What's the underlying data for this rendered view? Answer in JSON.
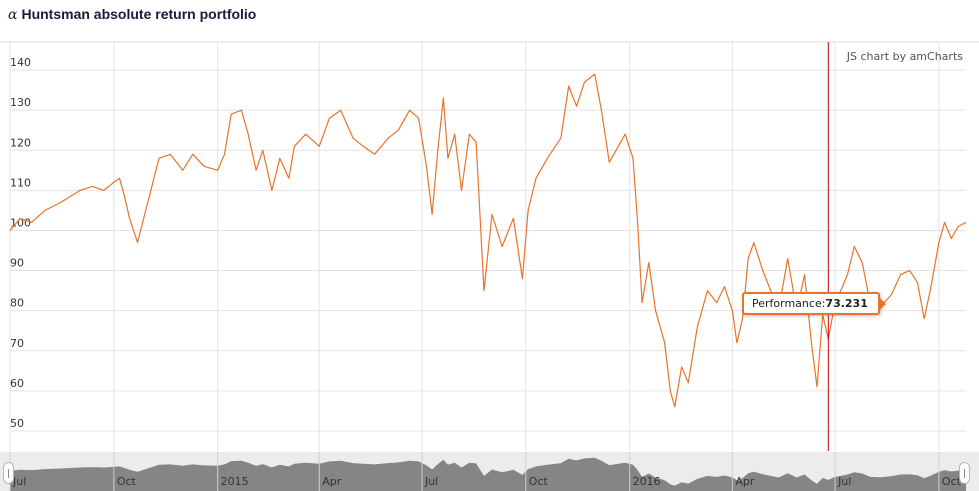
{
  "title": "Huntsman absolute return portfolio",
  "title_icon": "alpha-symbol",
  "title_symbol": "α",
  "credit": "JS chart by amCharts",
  "tooltip": {
    "label": "Performance:",
    "value": "73.231"
  },
  "colors": {
    "line": "#e8732a",
    "cursor": "#cc0000",
    "grid": "#e3e3e3",
    "scrollbar_fill": "#858585",
    "scrollbar_bg": "#ececec"
  },
  "chart_data": {
    "type": "line",
    "title": "Huntsman absolute return portfolio",
    "xlabel": "",
    "ylabel": "",
    "ylim": [
      45,
      147
    ],
    "yticks": [
      50,
      60,
      70,
      80,
      90,
      100,
      110,
      120,
      130,
      140
    ],
    "xlim": [
      "2014-07-01",
      "2016-10-25"
    ],
    "xtick_labels": [
      {
        "label": "Jul",
        "date": "2014-07-01"
      },
      {
        "label": "Oct",
        "date": "2014-10-01"
      },
      {
        "label": "2015",
        "date": "2015-01-01"
      },
      {
        "label": "Apr",
        "date": "2015-04-01"
      },
      {
        "label": "Jul",
        "date": "2015-07-01"
      },
      {
        "label": "Oct",
        "date": "2015-10-01"
      },
      {
        "label": "2016",
        "date": "2016-01-01"
      },
      {
        "label": "Apr",
        "date": "2016-04-01"
      },
      {
        "label": "Jul",
        "date": "2016-07-01"
      },
      {
        "label": "Oct",
        "date": "2016-10-01"
      }
    ],
    "grid": true,
    "cursor_date": "2016-06-25",
    "series": [
      {
        "name": "Performance",
        "points": [
          [
            "2014-07-01",
            100
          ],
          [
            "2014-07-10",
            103
          ],
          [
            "2014-07-20",
            102
          ],
          [
            "2014-08-01",
            105
          ],
          [
            "2014-08-15",
            107
          ],
          [
            "2014-09-01",
            110
          ],
          [
            "2014-09-12",
            111
          ],
          [
            "2014-09-22",
            110
          ],
          [
            "2014-10-01",
            112
          ],
          [
            "2014-10-06",
            113
          ],
          [
            "2014-10-10",
            109
          ],
          [
            "2014-10-15",
            103
          ],
          [
            "2014-10-22",
            97
          ],
          [
            "2014-11-01",
            108
          ],
          [
            "2014-11-10",
            118
          ],
          [
            "2014-11-20",
            119
          ],
          [
            "2014-12-01",
            115
          ],
          [
            "2014-12-10",
            119
          ],
          [
            "2014-12-20",
            116
          ],
          [
            "2015-01-01",
            115
          ],
          [
            "2015-01-07",
            119
          ],
          [
            "2015-01-13",
            129
          ],
          [
            "2015-01-22",
            130
          ],
          [
            "2015-01-28",
            124
          ],
          [
            "2015-02-04",
            115
          ],
          [
            "2015-02-10",
            120
          ],
          [
            "2015-02-18",
            110
          ],
          [
            "2015-02-25",
            118
          ],
          [
            "2015-03-05",
            113
          ],
          [
            "2015-03-10",
            121
          ],
          [
            "2015-03-20",
            124
          ],
          [
            "2015-04-01",
            121
          ],
          [
            "2015-04-10",
            128
          ],
          [
            "2015-04-20",
            130
          ],
          [
            "2015-05-01",
            123
          ],
          [
            "2015-05-10",
            121
          ],
          [
            "2015-05-20",
            119
          ],
          [
            "2015-06-01",
            123
          ],
          [
            "2015-06-10",
            125
          ],
          [
            "2015-06-20",
            130
          ],
          [
            "2015-06-28",
            128
          ],
          [
            "2015-07-05",
            116
          ],
          [
            "2015-07-10",
            104
          ],
          [
            "2015-07-15",
            120
          ],
          [
            "2015-07-20",
            133
          ],
          [
            "2015-07-24",
            118
          ],
          [
            "2015-07-30",
            124
          ],
          [
            "2015-08-05",
            110
          ],
          [
            "2015-08-12",
            124
          ],
          [
            "2015-08-18",
            122
          ],
          [
            "2015-08-25",
            85
          ],
          [
            "2015-09-01",
            104
          ],
          [
            "2015-09-10",
            96
          ],
          [
            "2015-09-20",
            103
          ],
          [
            "2015-09-28",
            88
          ],
          [
            "2015-10-03",
            105
          ],
          [
            "2015-10-10",
            113
          ],
          [
            "2015-10-20",
            118
          ],
          [
            "2015-11-01",
            123
          ],
          [
            "2015-11-08",
            136
          ],
          [
            "2015-11-15",
            131
          ],
          [
            "2015-11-22",
            137
          ],
          [
            "2015-12-01",
            139
          ],
          [
            "2015-12-07",
            130
          ],
          [
            "2015-12-14",
            117
          ],
          [
            "2015-12-20",
            120
          ],
          [
            "2015-12-28",
            124
          ],
          [
            "2016-01-04",
            118
          ],
          [
            "2016-01-08",
            102
          ],
          [
            "2016-01-12",
            82
          ],
          [
            "2016-01-18",
            92
          ],
          [
            "2016-01-24",
            80
          ],
          [
            "2016-02-01",
            72
          ],
          [
            "2016-02-06",
            60
          ],
          [
            "2016-02-10",
            56
          ],
          [
            "2016-02-16",
            66
          ],
          [
            "2016-02-22",
            62
          ],
          [
            "2016-03-01",
            76
          ],
          [
            "2016-03-10",
            85
          ],
          [
            "2016-03-18",
            82
          ],
          [
            "2016-03-25",
            86
          ],
          [
            "2016-04-01",
            80
          ],
          [
            "2016-04-05",
            72
          ],
          [
            "2016-04-10",
            78
          ],
          [
            "2016-04-15",
            93
          ],
          [
            "2016-04-20",
            97
          ],
          [
            "2016-04-28",
            90
          ],
          [
            "2016-05-05",
            85
          ],
          [
            "2016-05-12",
            80
          ],
          [
            "2016-05-20",
            93
          ],
          [
            "2016-05-28",
            80
          ],
          [
            "2016-06-04",
            89
          ],
          [
            "2016-06-10",
            72
          ],
          [
            "2016-06-15",
            61
          ],
          [
            "2016-06-20",
            79
          ],
          [
            "2016-06-25",
            73
          ],
          [
            "2016-07-01",
            82
          ],
          [
            "2016-07-06",
            85
          ],
          [
            "2016-07-12",
            89
          ],
          [
            "2016-07-18",
            96
          ],
          [
            "2016-07-25",
            92
          ],
          [
            "2016-08-01",
            82
          ],
          [
            "2016-08-10",
            81
          ],
          [
            "2016-08-20",
            84
          ],
          [
            "2016-08-28",
            89
          ],
          [
            "2016-09-05",
            90
          ],
          [
            "2016-09-12",
            87
          ],
          [
            "2016-09-18",
            78
          ],
          [
            "2016-09-24",
            86
          ],
          [
            "2016-10-01",
            97
          ],
          [
            "2016-10-06",
            102
          ],
          [
            "2016-10-12",
            98
          ],
          [
            "2016-10-18",
            101
          ],
          [
            "2016-10-25",
            102
          ]
        ]
      }
    ]
  }
}
